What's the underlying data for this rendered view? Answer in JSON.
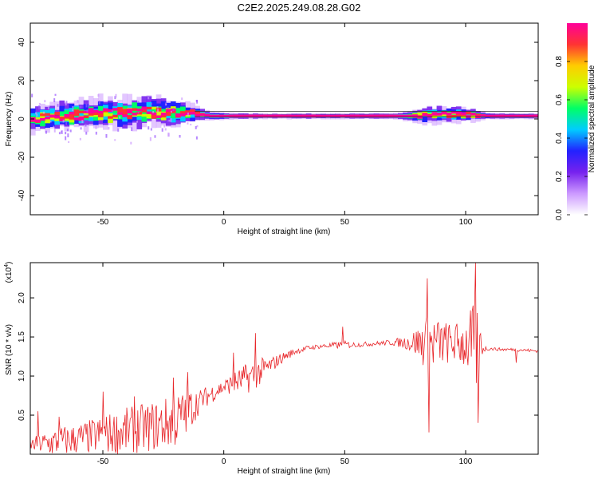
{
  "title": "C2E2.2025.249.08.28.G02",
  "chart_data": [
    {
      "type": "heatmap",
      "panel": "spectrogram",
      "xlabel": "Height of straight line (km)",
      "ylabel": "Frequency (Hz)",
      "xlim": [
        -80,
        130
      ],
      "ylim": [
        -50,
        50
      ],
      "xticks": [
        -50,
        0,
        50,
        100
      ],
      "xtick_labels": [
        "-50",
        "0",
        "50",
        "100"
      ],
      "yticks": [
        -40,
        -20,
        0,
        20,
        40
      ],
      "ytick_labels": [
        "-40",
        "-20",
        "0",
        "20",
        "40"
      ],
      "colorbar": {
        "label": "Normalized spectral amplitude",
        "range": [
          0,
          1
        ],
        "ticks": [
          0.0,
          0.2,
          0.4,
          0.6,
          0.8
        ],
        "tick_labels": [
          "0.0",
          "0.2",
          "0.4",
          "0.6",
          "0.8"
        ],
        "colormap": [
          "#ffffff",
          "#cc99ff",
          "#7722ee",
          "#2222ff",
          "#00ccff",
          "#00ff66",
          "#ccff00",
          "#ffcc00",
          "#ff3333",
          "#ff0099"
        ]
      },
      "reference_lines_hz": [
        4,
        1.2
      ],
      "ridge": {
        "x": [
          -80,
          -70,
          -60,
          -50,
          -40,
          -30,
          -20,
          -12,
          -5,
          0,
          10,
          20,
          30,
          40,
          50,
          60,
          70,
          78,
          85,
          95,
          103,
          110,
          120,
          130
        ],
        "center_hz": [
          0,
          1,
          2,
          2.5,
          3,
          3.5,
          3,
          3,
          1.5,
          1.5,
          1.5,
          1.5,
          1.5,
          1.5,
          1.5,
          1.5,
          1.5,
          1.5,
          2,
          2.5,
          2,
          1.5,
          1.5,
          1.5
        ],
        "spread_hz": [
          6,
          7,
          7,
          8,
          8,
          8,
          7,
          4,
          2,
          2,
          1.5,
          1.5,
          1.5,
          1.5,
          1.5,
          1.5,
          1.5,
          3,
          4,
          4,
          3,
          1.5,
          1.5,
          1.5
        ]
      }
    },
    {
      "type": "line",
      "panel": "snr",
      "xlabel": "Height of straight line (km)",
      "ylabel": "SNR (10 * v/v)",
      "y_multiplier_label": "(x10",
      "y_multiplier_exp": "4",
      "y_multiplier_close": ")",
      "xlim": [
        -80,
        130
      ],
      "ylim": [
        0,
        2.45
      ],
      "xticks": [
        -50,
        0,
        50,
        100
      ],
      "xtick_labels": [
        "-50",
        "0",
        "50",
        "100"
      ],
      "yticks": [
        0.5,
        1.0,
        1.5,
        2.0
      ],
      "ytick_labels": [
        "0.5",
        "1.0",
        "1.5",
        "2.0"
      ],
      "color": "#e8262a",
      "series": [
        {
          "x": [
            -80,
            -70,
            -60,
            -50,
            -40,
            -30,
            -20,
            -15,
            -10,
            -5,
            0,
            5,
            10,
            15,
            20,
            25,
            30,
            35,
            40,
            45,
            50,
            55,
            60,
            65,
            70,
            75,
            80,
            85,
            90,
            95,
            100,
            103,
            105,
            107,
            110,
            115,
            120,
            125,
            130
          ],
          "baseline": [
            0.12,
            0.15,
            0.2,
            0.25,
            0.3,
            0.35,
            0.42,
            0.55,
            0.68,
            0.78,
            0.86,
            0.92,
            0.98,
            1.05,
            1.15,
            1.25,
            1.32,
            1.36,
            1.38,
            1.39,
            1.4,
            1.4,
            1.41,
            1.42,
            1.43,
            1.43,
            1.43,
            1.42,
            1.42,
            1.42,
            1.42,
            1.38,
            1.36,
            1.35,
            1.35,
            1.34,
            1.34,
            1.33,
            1.32
          ],
          "amplitude": [
            0.08,
            0.2,
            0.2,
            0.25,
            0.3,
            0.32,
            0.35,
            0.3,
            0.15,
            0.12,
            0.1,
            0.15,
            0.2,
            0.18,
            0.1,
            0.06,
            0.04,
            0.03,
            0.03,
            0.04,
            0.05,
            0.03,
            0.03,
            0.03,
            0.04,
            0.08,
            0.2,
            0.4,
            0.3,
            0.25,
            0.35,
            0.55,
            0.7,
            0.05,
            0.02,
            0.02,
            0.02,
            0.02,
            0.02
          ],
          "peaks": [
            {
              "x": -77,
              "y": 0.55
            },
            {
              "x": -68,
              "y": 0.48
            },
            {
              "x": -50,
              "y": 0.8
            },
            {
              "x": -37,
              "y": 0.74
            },
            {
              "x": -21,
              "y": 0.98
            },
            {
              "x": -15,
              "y": 1.05
            },
            {
              "x": 4,
              "y": 1.3
            },
            {
              "x": 13,
              "y": 1.55
            },
            {
              "x": 49,
              "y": 1.63
            },
            {
              "x": 84,
              "y": 2.25
            },
            {
              "x": 85,
              "y": 0.28
            },
            {
              "x": 104,
              "y": 2.45
            },
            {
              "x": 105,
              "y": 0.4
            },
            {
              "x": 121,
              "y": 1.17
            }
          ]
        }
      ]
    }
  ]
}
